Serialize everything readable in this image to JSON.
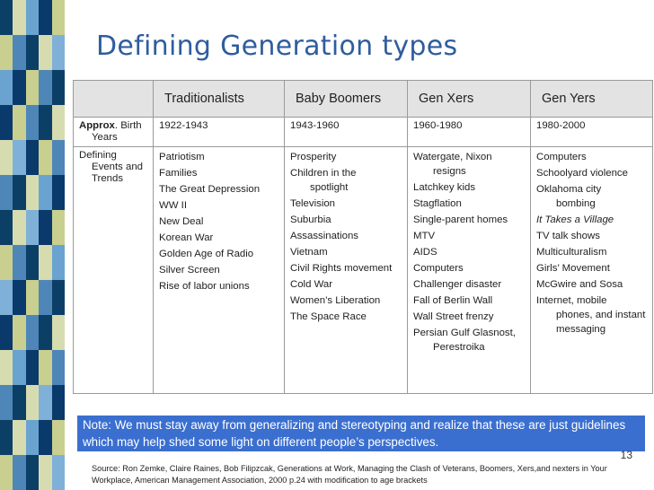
{
  "slide": {
    "title": "Defining Generation types",
    "page_number": "13"
  },
  "table": {
    "headers": [
      "",
      "Traditionalists",
      "Baby Boomers",
      "Gen Xers",
      "Gen Yers"
    ],
    "years_row": {
      "label_bold": "Approx",
      "label_rest": ". Birth Years",
      "values": [
        "1922-1943",
        "1943-1960",
        "1960-1980",
        "1980-2000"
      ]
    },
    "events_row": {
      "label": "Defining Events and Trends",
      "columns": [
        [
          "Patriotism",
          "Families",
          "The Great Depression",
          "WW II",
          "New Deal",
          "Korean War",
          "Golden Age of Radio",
          "Silver Screen",
          "Rise of labor unions"
        ],
        [
          "Prosperity",
          "Children in the spotlight",
          "Television",
          "Suburbia",
          "Assassinations",
          "Vietnam",
          "Civil Rights movement",
          "Cold War",
          "Women’s Liberation",
          "The Space Race"
        ],
        [
          "Watergate, Nixon resigns",
          "Latchkey kids",
          "Stagflation",
          "Single-parent homes",
          "MTV",
          "AIDS",
          "Computers",
          "Challenger disaster",
          "Fall of Berlin Wall",
          "Wall Street frenzy",
          "Persian Gulf Glasnost, Perestroika"
        ],
        [
          "Computers",
          "Schoolyard violence",
          "Oklahoma city bombing",
          "It Takes a Village",
          "TV talk shows",
          "Multiculturalism",
          "Girls’ Movement",
          "McGwire and Sosa",
          "Internet, mobile phones, and instant messaging"
        ]
      ]
    }
  },
  "note": "Note:  We must stay away from generalizing and stereotyping and realize that these are just guidelines which may help shed some light on different people’s perspectives.",
  "source": "Source:  Ron Zemke, Claire Raines, Bob Filipzcak,  Generations at Work, Managing the Clash of Veterans, Boomers, Xers,and nexters in Your Workplace, American Management Association, 2000 p.24 with modification to age brackets",
  "colors": {
    "title": "#2f5d9e",
    "note_background": "#3b6fcf",
    "header_background": "#e3e3e3"
  }
}
